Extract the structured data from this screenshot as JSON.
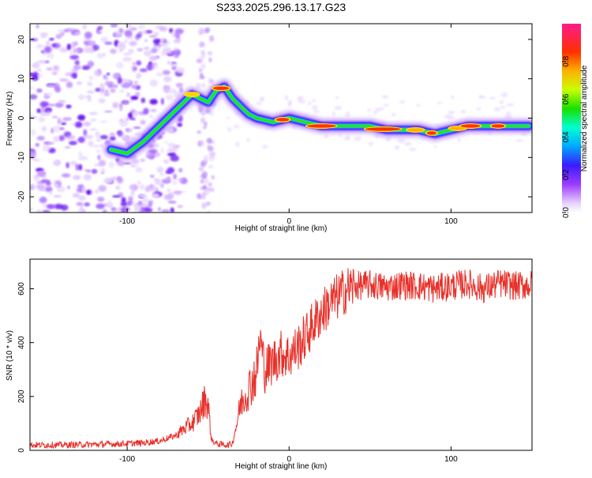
{
  "title": "S233.2025.296.13.17.G23",
  "chart_data": [
    {
      "type": "heatmap",
      "id": "spectrogram",
      "xlabel": "Height of straight line (km)",
      "ylabel": "Frequency (Hz)",
      "xlim": [
        -160,
        150
      ],
      "ylim": [
        -24,
        24
      ],
      "xticks": [
        -100,
        0,
        100
      ],
      "xtick_labels": [
        "-100",
        "0",
        "100"
      ],
      "yticks": [
        -20,
        -10,
        0,
        10,
        20
      ],
      "ytick_labels": [
        "-20",
        "-10",
        "0",
        "10",
        "20"
      ],
      "ridge": {
        "x": [
          -110,
          -100,
          -90,
          -80,
          -70,
          -60,
          -50,
          -45,
          -40,
          -35,
          -30,
          -25,
          -20,
          -10,
          0,
          10,
          20,
          30,
          40,
          50,
          60,
          70,
          80,
          90,
          100,
          110,
          120,
          130,
          140,
          148
        ],
        "y": [
          -8,
          -9,
          -6,
          -2,
          2,
          6,
          4,
          7,
          8,
          5,
          3,
          1,
          0,
          -1,
          0,
          -1,
          -2,
          -2,
          -2,
          -2,
          -3,
          -3,
          -3,
          -4,
          -3,
          -2,
          -2,
          -2,
          -2,
          -2
        ]
      },
      "colorbar": {
        "label": "Normalized spectral amplitude",
        "range": [
          0,
          1
        ],
        "ticks": [
          0.0,
          0.2,
          0.4,
          0.6,
          0.8
        ],
        "tick_labels": [
          "0.0",
          "0.2",
          "0.4",
          "0.6",
          "0.8"
        ]
      }
    },
    {
      "type": "line",
      "id": "snr",
      "xlabel": "Height of straight line (km)",
      "ylabel": "SNR (10 * v/v)",
      "xlim": [
        -160,
        150
      ],
      "ylim": [
        0,
        710
      ],
      "xticks": [
        -100,
        0,
        100
      ],
      "xtick_labels": [
        "-100",
        "0",
        "100"
      ],
      "yticks": [
        0,
        200,
        400,
        600
      ],
      "ytick_labels": [
        "0",
        "200",
        "400",
        "600"
      ],
      "series": [
        {
          "name": "SNR",
          "color": "#e8312a",
          "x": [
            -160,
            -140,
            -120,
            -100,
            -90,
            -80,
            -70,
            -65,
            -60,
            -55,
            -52,
            -50,
            -48,
            -45,
            -42,
            -38,
            -35,
            -33,
            -30,
            -25,
            -20,
            -18,
            -15,
            -10,
            -5,
            0,
            5,
            10,
            15,
            20,
            25,
            30,
            35,
            40,
            50,
            60,
            70,
            80,
            90,
            100,
            110,
            120,
            130,
            140,
            150
          ],
          "y": [
            20,
            20,
            22,
            25,
            28,
            35,
            55,
            80,
            100,
            140,
            190,
            170,
            40,
            25,
            22,
            20,
            25,
            80,
            170,
            230,
            290,
            420,
            300,
            330,
            360,
            350,
            380,
            420,
            470,
            510,
            545,
            570,
            595,
            610,
            615,
            605,
            615,
            610,
            600,
            610,
            620,
            600,
            620,
            610,
            615
          ]
        }
      ]
    }
  ]
}
